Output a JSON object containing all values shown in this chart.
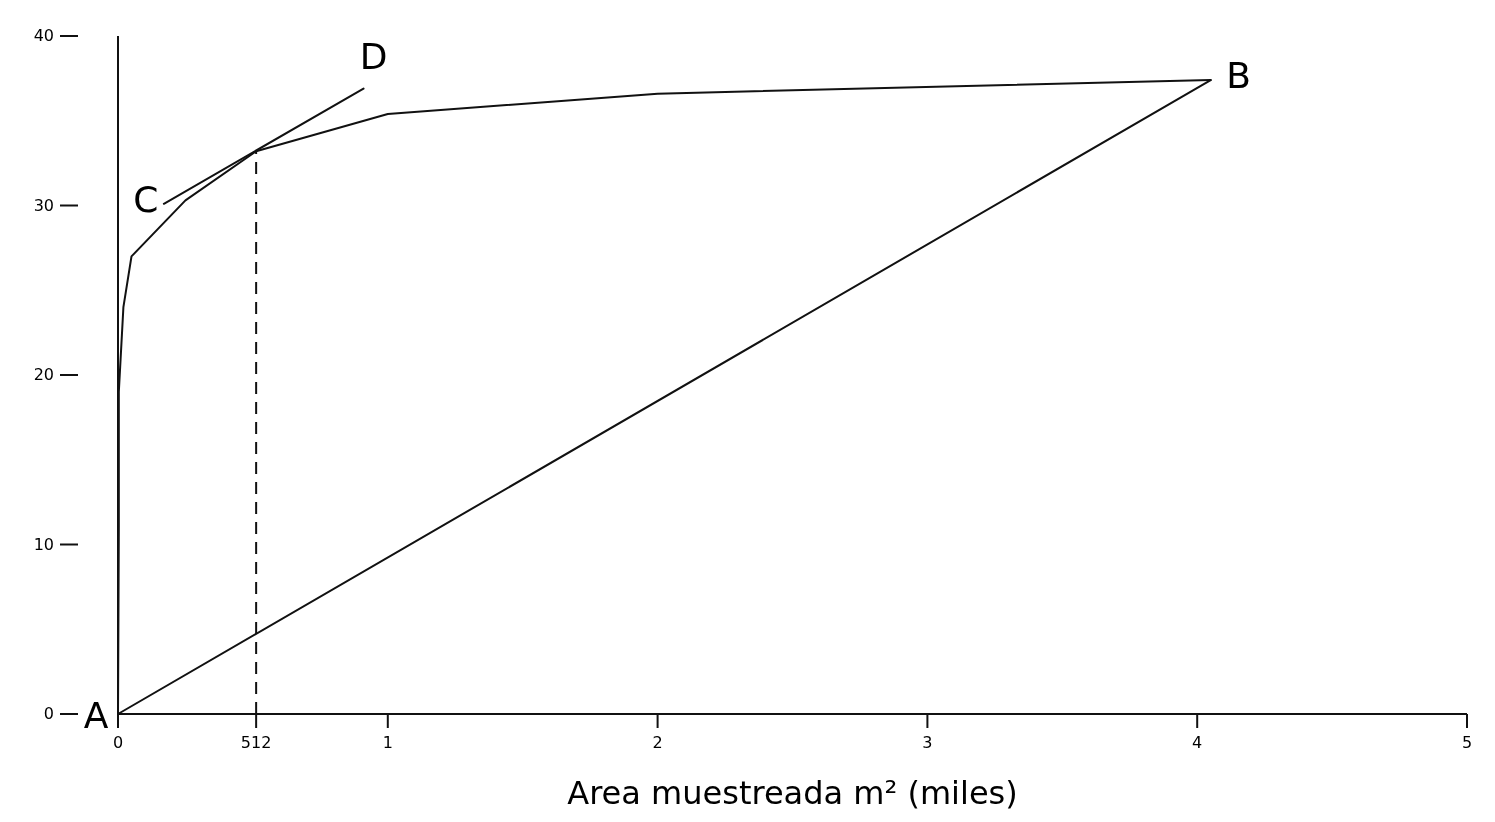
{
  "chart_data": {
    "type": "line",
    "xlabel": "Area muestreada m² (miles)",
    "xlim": [
      0,
      5
    ],
    "ylim": [
      0,
      40
    ],
    "xticks": [
      0,
      {
        "value": 0.512,
        "label": null
      },
      1,
      2,
      3,
      4,
      5
    ],
    "yticks": [
      0,
      10,
      20,
      30,
      40
    ],
    "grid": false,
    "marker": "none",
    "series": [
      {
        "color": "#111111",
        "x": [
          0,
          0.003,
          0.003,
          0.02,
          0.05,
          0.25,
          0.512,
          1,
          2,
          4.05
        ],
        "values": [
          0,
          11,
          19,
          24,
          27,
          30.3,
          33.2,
          35.4,
          36.6,
          37.4
        ]
      },
      {
        "color": "#111111",
        "x": [
          0,
          4.05
        ],
        "values": [
          0,
          37.4
        ]
      },
      {
        "color": "#111111",
        "x": [
          0.17,
          0.91
        ],
        "values": [
          30.1,
          36.9
        ]
      }
    ],
    "ref_lines": [
      {
        "axis": "x",
        "value": 0.512,
        "label": "512",
        "line_style": "dashed",
        "color": "#111111"
      }
    ],
    "annotations": [
      {
        "text": "A",
        "x": 0,
        "y": 0
      },
      {
        "text": "B",
        "x": 4.05,
        "y": 37.4
      },
      {
        "text": "C",
        "x": 0.17,
        "y": 30.1
      },
      {
        "text": "D",
        "x": 0.91,
        "y": 36.9
      }
    ]
  }
}
